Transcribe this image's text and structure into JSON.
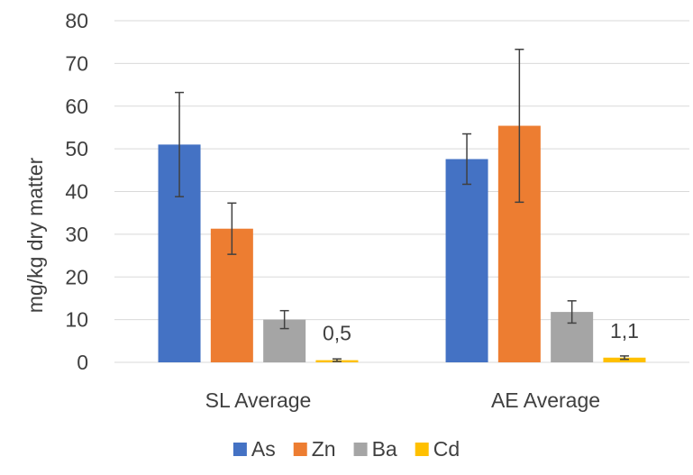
{
  "chart_data": {
    "type": "bar",
    "title": "",
    "xlabel": "",
    "ylabel": "mg/kg dry matter",
    "ylim": [
      0,
      80
    ],
    "yticks": [
      0,
      10,
      20,
      30,
      40,
      50,
      60,
      70,
      80
    ],
    "grid": true,
    "legend_position": "bottom",
    "categories": [
      "SL Average",
      "AE Average"
    ],
    "series": [
      {
        "name": "As",
        "color": "#4472C4",
        "values": [
          51.0,
          47.6
        ],
        "error": [
          12.2,
          5.9
        ]
      },
      {
        "name": "Zn",
        "color": "#ED7D31",
        "values": [
          31.3,
          55.4
        ],
        "error": [
          6.0,
          17.9
        ]
      },
      {
        "name": "Ba",
        "color": "#A5A5A5",
        "values": [
          10.0,
          11.8
        ],
        "error": [
          2.1,
          2.6
        ]
      },
      {
        "name": "Cd",
        "color": "#FFC000",
        "values": [
          0.5,
          1.1
        ],
        "error": [
          0.3,
          0.4
        ]
      }
    ],
    "data_labels": [
      {
        "series": "Cd",
        "category": "SL Average",
        "text": "0,5"
      },
      {
        "series": "Cd",
        "category": "AE Average",
        "text": "1,1"
      }
    ],
    "colors": {
      "grid": "#D9D9D9",
      "text": "#404040",
      "error_bar": "#404040"
    }
  }
}
